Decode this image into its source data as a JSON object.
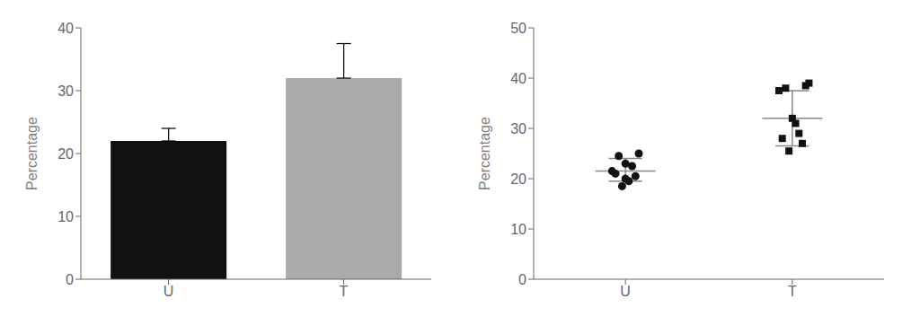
{
  "chart_data": [
    {
      "type": "bar",
      "categories": [
        "U",
        "T"
      ],
      "values": [
        22.0,
        32.0
      ],
      "errors": [
        2.0,
        5.5
      ],
      "colors": [
        "#111111",
        "#aaaaaa"
      ],
      "ylabel": "Percentage",
      "ylim": [
        0,
        40
      ],
      "yticks": [
        0,
        10,
        20,
        30,
        40
      ]
    },
    {
      "type": "scatter",
      "ylabel": "Percentage",
      "xlim": [
        -0.55,
        1.55
      ],
      "xticks": [
        {
          "value": 0,
          "label": "U"
        },
        {
          "value": 1,
          "label": "T"
        }
      ],
      "ylim": [
        0,
        50
      ],
      "yticks": [
        0,
        10,
        20,
        30,
        40,
        50
      ],
      "series": [
        {
          "marker": "circle",
          "color": "#111111",
          "x": [
            -0.08,
            -0.04,
            0.0,
            0.04,
            0.08,
            -0.06,
            0.02,
            0.06,
            -0.02,
            0.0
          ],
          "values": [
            21.5,
            24.5,
            23.0,
            22.5,
            25.0,
            21.0,
            19.5,
            20.5,
            18.5,
            20.0
          ]
        },
        {
          "marker": "square",
          "color": "#111111",
          "x": [
            0.92,
            0.96,
            1.0,
            1.04,
            1.08,
            0.94,
            1.02,
            1.06,
            0.98,
            1.1
          ],
          "values": [
            37.5,
            38.0,
            32.0,
            29.0,
            38.5,
            28.0,
            31.0,
            27.0,
            25.5,
            39.0
          ]
        }
      ],
      "summary": {
        "color": "#888888",
        "mean": [
          21.5,
          32.0
        ],
        "sd_lo": [
          19.5,
          26.5
        ],
        "sd_hi": [
          24.0,
          37.5
        ]
      }
    }
  ]
}
